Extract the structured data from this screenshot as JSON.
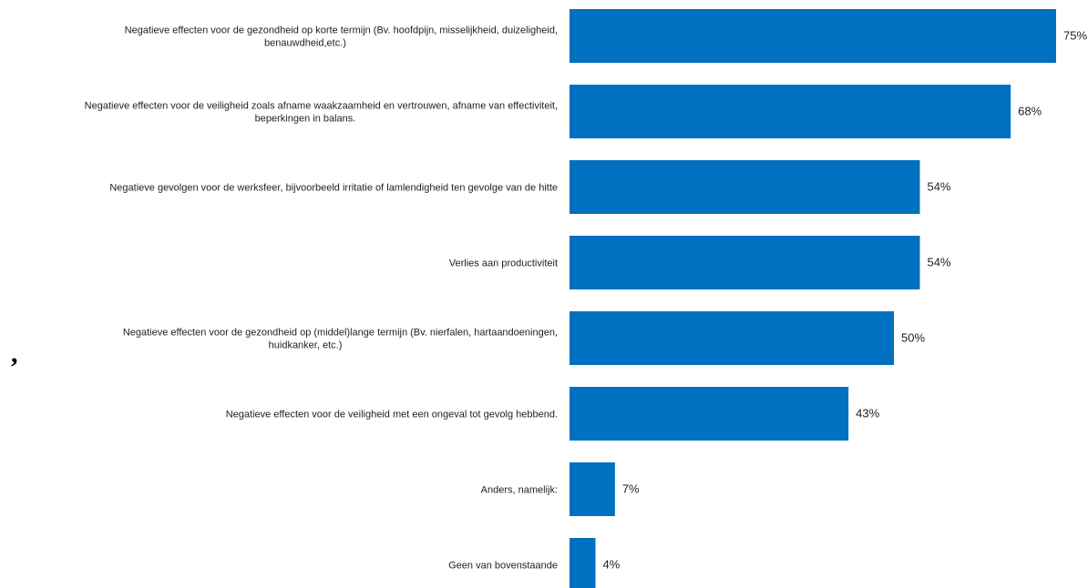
{
  "chart_data": {
    "type": "bar",
    "orientation": "horizontal",
    "categories": [
      [
        "Negatieve effecten voor de gezondheid op korte termijn (Bv. hoofdpijn, misselijkheid, duizeligheid,",
        "benauwdheid,etc.)"
      ],
      [
        "Negatieve effecten voor de veiligheid zoals afname waakzaamheid en vertrouwen, afname van effectiviteit,",
        "beperkingen in balans."
      ],
      [
        "Negatieve gevolgen voor de werksfeer, bijvoorbeeld irritatie of lamlendigheid ten gevolge van de hitte"
      ],
      [
        "Verlies aan productiviteit"
      ],
      [
        "Negatieve effecten voor de gezondheid op (middel)lange termijn (Bv. nierfalen, hartaandoeningen,",
        "huidkanker, etc.)"
      ],
      [
        "Negatieve effecten voor de veiligheid met een ongeval tot gevolg hebbend."
      ],
      [
        "Anders, namelijk:"
      ],
      [
        "Geen van bovenstaande"
      ]
    ],
    "values": [
      75,
      68,
      54,
      54,
      50,
      43,
      7,
      4
    ],
    "value_labels": [
      "75%",
      "68%",
      "54%",
      "54%",
      "50%",
      "43%",
      "7%",
      "4%"
    ],
    "xlim": [
      0,
      75
    ],
    "bar_color": "#0070C0",
    "grid": false,
    "legend": "none"
  },
  "stray_mark": ","
}
